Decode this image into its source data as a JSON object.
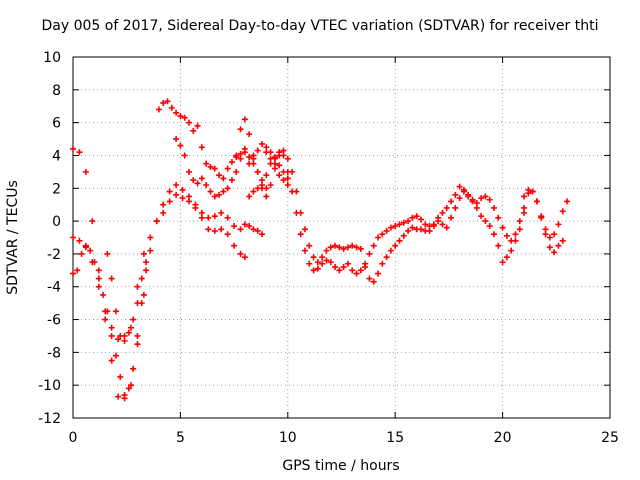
{
  "chart_data": {
    "type": "scatter",
    "title": "Day 005 of 2017, Sidereal Day-to-day VTEC variation (SDTVAR) for receiver thti",
    "xlabel": "GPS time / hours",
    "ylabel": "SDTVAR / TECUs",
    "xlim": [
      0,
      25
    ],
    "ylim": [
      -12,
      10
    ],
    "xticks": [
      0,
      5,
      10,
      15,
      20,
      25
    ],
    "yticks": [
      -12,
      -10,
      -8,
      -6,
      -4,
      -2,
      0,
      2,
      4,
      6,
      8,
      10
    ],
    "grid": true,
    "legend": "none",
    "marker": "+",
    "color": "#ff0000",
    "series": [
      {
        "x": [
          0.0,
          0.3,
          0.6,
          0.9,
          1.2,
          1.5,
          1.8,
          2.1,
          2.4,
          2.7,
          3.0,
          3.3,
          3.6,
          3.9,
          4.2,
          4.5,
          4.8,
          5.1,
          5.4,
          5.7,
          6.0,
          6.3,
          6.6,
          6.9,
          7.2,
          7.5,
          7.8,
          8.0
        ],
        "y": [
          4.4,
          4.2,
          3.0,
          0.0,
          -3.0,
          -6.0,
          -8.5,
          -10.7,
          -10.8,
          -10.0,
          -7.5,
          -4.5,
          -1.8,
          0.0,
          0.5,
          1.2,
          1.6,
          1.4,
          1.2,
          0.8,
          0.2,
          -0.5,
          -0.6,
          -0.5,
          -0.8,
          -1.5,
          -2.0,
          -2.2
        ]
      },
      {
        "x": [
          0.0,
          0.3,
          0.6,
          0.9,
          1.2,
          1.5,
          1.8,
          2.1,
          2.4,
          2.7,
          3.0,
          3.3,
          3.6,
          3.9,
          4.2,
          4.5,
          4.8,
          5.1,
          5.4,
          5.7,
          6.0,
          6.3,
          6.6,
          6.9,
          7.2,
          7.5,
          7.8,
          8.0,
          8.2,
          8.4,
          8.6,
          8.8
        ],
        "y": [
          -1.0,
          -1.2,
          -1.6,
          -2.5,
          -4.0,
          -5.5,
          -6.5,
          -7.2,
          -7.0,
          -6.5,
          -4.0,
          -2.0,
          -1.0,
          0.0,
          1.0,
          1.8,
          2.2,
          1.9,
          1.5,
          1.0,
          0.5,
          0.2,
          0.3,
          0.5,
          0.2,
          -0.3,
          -0.5,
          -0.2,
          -0.3,
          -0.5,
          -0.6,
          -0.8
        ]
      },
      {
        "x": [
          0.0,
          0.2,
          0.4,
          0.6,
          0.8,
          1.0,
          1.2,
          1.4,
          1.6,
          1.8,
          2.0,
          2.2,
          2.4,
          2.6,
          2.8,
          3.0,
          3.2,
          3.4
        ],
        "y": [
          -3.2,
          -3.0,
          -2.0,
          -1.5,
          -1.8,
          -2.5,
          -3.5,
          -4.5,
          -5.5,
          -7.0,
          -8.2,
          -9.5,
          -10.6,
          -10.2,
          -9.0,
          -7.0,
          -5.0,
          -3.0
        ]
      },
      {
        "x": [
          1.6,
          1.8,
          2.0,
          2.2,
          2.4,
          2.6,
          2.8,
          3.0,
          3.2,
          3.4
        ],
        "y": [
          -2.0,
          -3.5,
          -5.5,
          -7.0,
          -7.3,
          -6.8,
          -6.0,
          -5.0,
          -3.5,
          -2.5
        ]
      },
      {
        "x": [
          4.0,
          4.2,
          4.4,
          4.6,
          4.8,
          5.0,
          5.2,
          5.4,
          5.6,
          5.8,
          6.0,
          6.2,
          6.4,
          6.6,
          6.8,
          7.0,
          7.2,
          7.4,
          7.6,
          7.8,
          8.0,
          8.2,
          8.4,
          8.6,
          8.8,
          9.0,
          9.2,
          9.4,
          9.6,
          9.8,
          10.0
        ],
        "y": [
          6.8,
          7.2,
          7.3,
          6.9,
          6.6,
          6.4,
          6.3,
          6.0,
          5.5,
          5.8,
          4.5,
          3.5,
          3.3,
          3.2,
          2.8,
          2.6,
          3.2,
          3.6,
          3.9,
          4.1,
          4.2,
          3.5,
          3.8,
          4.3,
          4.7,
          4.2,
          3.8,
          3.2,
          2.8,
          2.5,
          2.2
        ]
      },
      {
        "x": [
          4.8,
          5.0,
          5.2,
          5.4,
          5.6,
          5.8,
          6.0,
          6.2,
          6.4,
          6.6,
          6.8,
          7.0,
          7.2,
          7.4,
          7.6,
          7.8,
          8.0,
          8.2,
          8.4,
          8.6,
          8.8,
          9.0,
          9.2,
          9.4,
          9.6,
          9.8,
          10.0
        ],
        "y": [
          5.0,
          4.6,
          4.0,
          3.0,
          2.5,
          2.3,
          2.6,
          2.2,
          1.8,
          1.5,
          1.6,
          1.8,
          2.0,
          2.5,
          3.0,
          3.8,
          4.4,
          3.9,
          3.5,
          3.0,
          2.5,
          2.0,
          2.2,
          3.5,
          4.2,
          4.0,
          3.0
        ]
      },
      {
        "x": [
          7.6,
          7.8,
          8.0,
          8.2,
          8.4,
          8.6,
          8.8,
          9.0
        ],
        "y": [
          4.0,
          5.6,
          6.2,
          5.3,
          4.0,
          3.0,
          2.0,
          1.5
        ]
      },
      {
        "x": [
          8.2,
          8.4,
          8.6,
          8.8,
          9.0,
          9.2,
          9.4,
          9.6,
          9.8,
          10.0,
          10.2,
          10.4,
          10.6,
          10.8,
          11.0,
          11.2,
          11.4,
          11.6,
          11.8,
          12.0,
          12.2,
          12.4,
          12.6,
          12.8,
          13.0,
          13.2,
          13.4,
          13.6,
          13.8,
          14.0,
          14.2,
          14.4,
          14.6,
          14.8,
          15.0,
          15.2,
          15.4,
          15.6,
          15.8,
          16.0,
          16.2,
          16.4,
          16.6,
          16.8,
          17.0,
          17.2,
          17.4,
          17.6,
          17.8,
          18.0,
          18.2,
          18.4,
          18.6,
          18.8,
          19.0,
          19.2,
          19.4,
          19.6,
          19.8,
          20.0,
          20.2,
          20.4,
          20.6,
          20.8,
          21.0
        ],
        "y": [
          1.5,
          1.8,
          2.0,
          2.2,
          2.8,
          3.5,
          3.8,
          3.4,
          3.0,
          2.6,
          1.8,
          0.5,
          -0.8,
          -1.8,
          -2.6,
          -3.0,
          -2.9,
          -2.6,
          -2.4,
          -2.5,
          -2.8,
          -3.0,
          -2.8,
          -2.6,
          -3.0,
          -3.2,
          -3.0,
          -2.6,
          -2.0,
          -1.5,
          -1.0,
          -0.8,
          -0.6,
          -0.4,
          -0.3,
          -0.2,
          -0.1,
          0.0,
          0.2,
          0.3,
          0.1,
          -0.2,
          -0.3,
          -0.2,
          0.2,
          0.5,
          0.8,
          1.2,
          1.6,
          2.1,
          1.8,
          1.5,
          1.2,
          0.8,
          0.3,
          0.0,
          -0.3,
          -0.8,
          -1.5,
          -2.5,
          -2.2,
          -1.8,
          -1.2,
          -0.5,
          0.5
        ]
      },
      {
        "x": [
          9.0,
          9.2,
          9.4,
          9.6,
          9.8,
          10.0,
          10.2,
          10.4,
          10.6,
          10.8,
          11.0,
          11.2,
          11.4,
          11.6,
          11.8,
          12.0,
          12.2,
          12.4,
          12.6,
          12.8,
          13.0,
          13.2,
          13.4,
          13.6,
          13.8,
          14.0,
          14.2,
          14.4,
          14.6,
          14.8,
          15.0,
          15.2,
          15.4,
          15.6,
          15.8,
          16.0,
          16.2,
          16.4,
          16.6,
          16.8,
          17.0,
          17.2,
          17.4,
          17.6,
          17.8,
          18.0,
          18.2,
          18.4,
          18.6,
          18.8,
          19.0,
          19.2,
          19.4,
          19.6,
          19.8,
          20.0,
          20.2,
          20.4,
          20.6,
          20.8,
          21.0,
          21.2,
          21.4,
          21.6,
          21.8,
          22.0,
          22.2,
          22.4,
          22.6,
          22.8
        ],
        "y": [
          4.5,
          4.2,
          3.9,
          4.0,
          4.3,
          3.8,
          3.0,
          1.8,
          0.5,
          -0.5,
          -1.5,
          -2.2,
          -2.5,
          -2.2,
          -1.8,
          -1.6,
          -1.5,
          -1.6,
          -1.7,
          -1.6,
          -1.5,
          -1.6,
          -1.7,
          -2.8,
          -3.5,
          -3.7,
          -3.2,
          -2.6,
          -2.2,
          -1.8,
          -1.5,
          -1.2,
          -0.9,
          -0.6,
          -0.4,
          -0.5,
          -0.5,
          -0.6,
          -0.6,
          -0.3,
          0.0,
          -0.2,
          -0.4,
          0.2,
          0.8,
          1.4,
          1.9,
          1.6,
          1.3,
          1.1,
          1.4,
          1.5,
          1.3,
          0.8,
          0.2,
          -0.4,
          -0.9,
          -1.2,
          -0.8,
          0.0,
          0.8,
          1.7,
          1.8,
          1.2,
          0.2,
          -0.8,
          -1.6,
          -1.9,
          -1.5,
          -1.2
        ]
      },
      {
        "x": [
          21.0,
          21.2,
          21.4,
          21.6,
          21.8,
          22.0,
          22.2,
          22.4,
          22.6,
          22.8,
          23.0
        ],
        "y": [
          1.5,
          1.9,
          1.8,
          1.2,
          0.3,
          -0.5,
          -1.0,
          -0.8,
          -0.2,
          0.6,
          1.2
        ]
      }
    ]
  }
}
